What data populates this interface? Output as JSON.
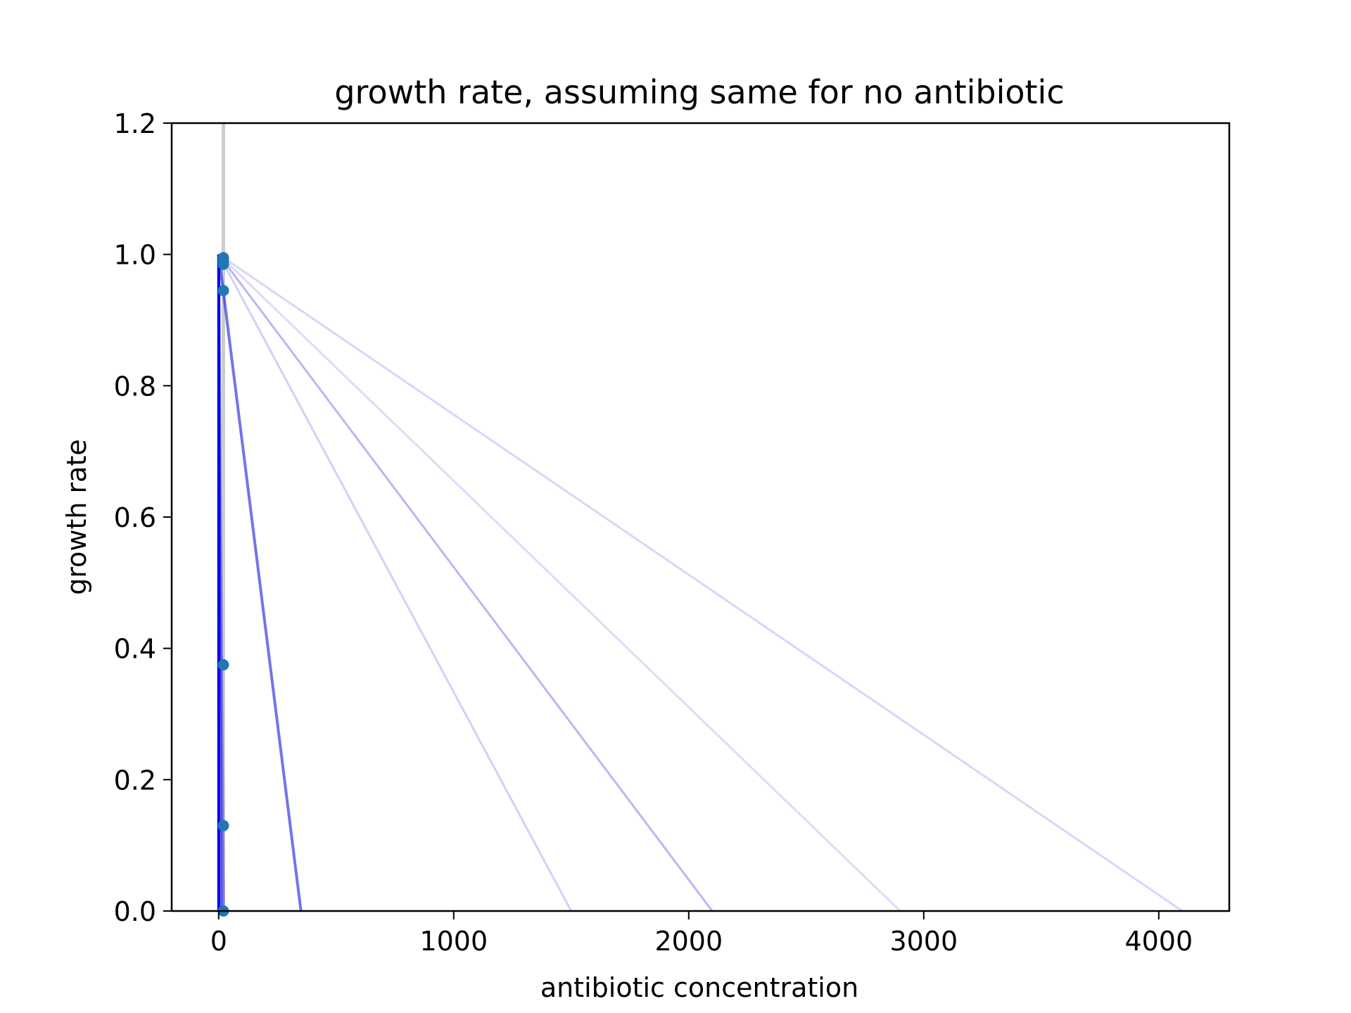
{
  "chart_data": {
    "type": "line",
    "title": "growth rate, assuming same for no antibiotic",
    "xlabel": "antibiotic concentration",
    "ylabel": "growth rate",
    "xlim": [
      -200,
      4300
    ],
    "ylim": [
      0,
      1.2
    ],
    "xticks": [
      0,
      1000,
      2000,
      3000,
      4000
    ],
    "yticks": [
      0.0,
      0.2,
      0.4,
      0.6,
      0.8,
      1.0,
      1.2
    ],
    "ytick_format": 1,
    "grid": false,
    "vertical_reference": {
      "x": 20,
      "color": "#cccccc"
    },
    "fit_lines": [
      {
        "x": [
          0,
          0
        ],
        "y": [
          1.0,
          0.0
        ],
        "color": "#0000ee",
        "opacity": 1.0,
        "width": 4
      },
      {
        "x": [
          0,
          10
        ],
        "y": [
          1.0,
          0.0
        ],
        "color": "#0000ee",
        "opacity": 0.6,
        "width": 4
      },
      {
        "x": [
          0,
          20
        ],
        "y": [
          1.0,
          0.0
        ],
        "color": "#0000ee",
        "opacity": 0.4,
        "width": 4
      },
      {
        "x": [
          0,
          350
        ],
        "y": [
          1.0,
          0.0
        ],
        "color": "#0000dd",
        "opacity": 0.55,
        "width": 4
      },
      {
        "x": [
          0,
          1500
        ],
        "y": [
          1.0,
          0.0
        ],
        "color": "#0000dd",
        "opacity": 0.18,
        "width": 3
      },
      {
        "x": [
          0,
          2100
        ],
        "y": [
          1.0,
          0.0
        ],
        "color": "#0000dd",
        "opacity": 0.28,
        "width": 3
      },
      {
        "x": [
          0,
          2900
        ],
        "y": [
          1.0,
          0.0
        ],
        "color": "#0000dd",
        "opacity": 0.14,
        "width": 3
      },
      {
        "x": [
          0,
          4100
        ],
        "y": [
          1.0,
          0.0
        ],
        "color": "#0000dd",
        "opacity": 0.16,
        "width": 3
      }
    ],
    "points": {
      "color": "#1f77b4",
      "x": [
        20,
        20,
        20,
        20,
        20,
        20,
        20
      ],
      "y": [
        0.995,
        0.99,
        0.985,
        0.945,
        0.375,
        0.13,
        0.0
      ]
    }
  }
}
